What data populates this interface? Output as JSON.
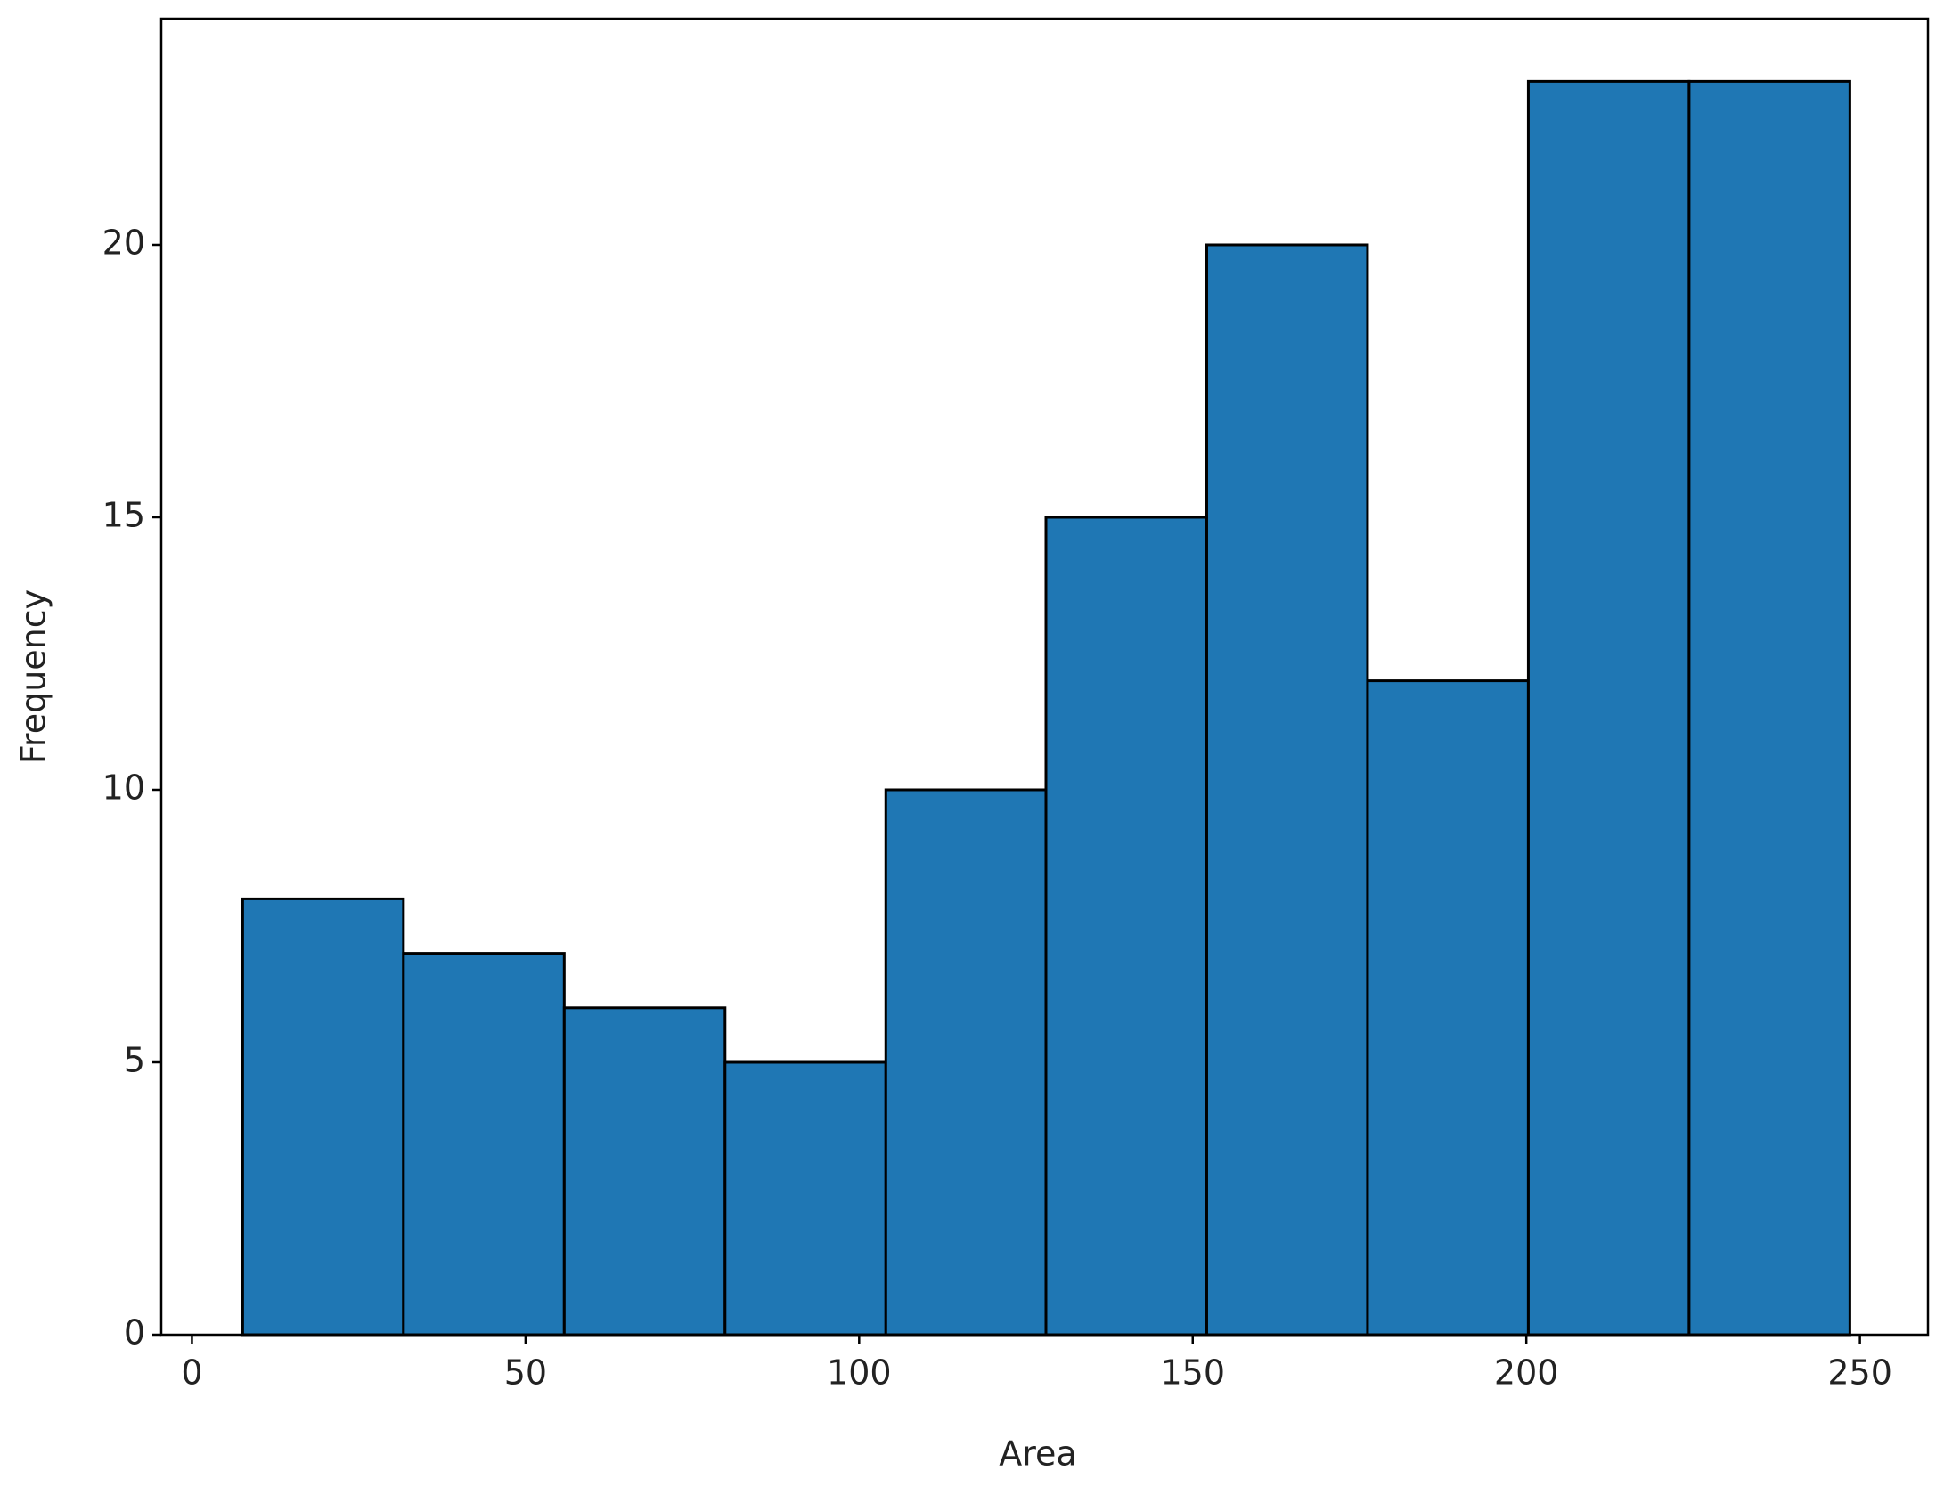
{
  "chart_data": {
    "type": "histogram",
    "xlabel": "Area",
    "ylabel": "Frequency",
    "bins": [
      7.6,
      31.7,
      55.8,
      79.9,
      104.0,
      128.0,
      152.1,
      176.2,
      200.3,
      224.4,
      248.5
    ],
    "values": [
      8,
      7,
      6,
      5,
      10,
      15,
      20,
      12,
      23,
      23
    ],
    "color": "#1f77b4",
    "edgecolor": "#000000",
    "xlim": [
      -4.6,
      260.2
    ],
    "xticks": [
      0,
      50,
      100,
      150,
      200,
      250
    ],
    "ylim": [
      0,
      24.15
    ],
    "yticks": [
      0,
      5,
      10,
      15,
      20
    ],
    "grid": false
  }
}
